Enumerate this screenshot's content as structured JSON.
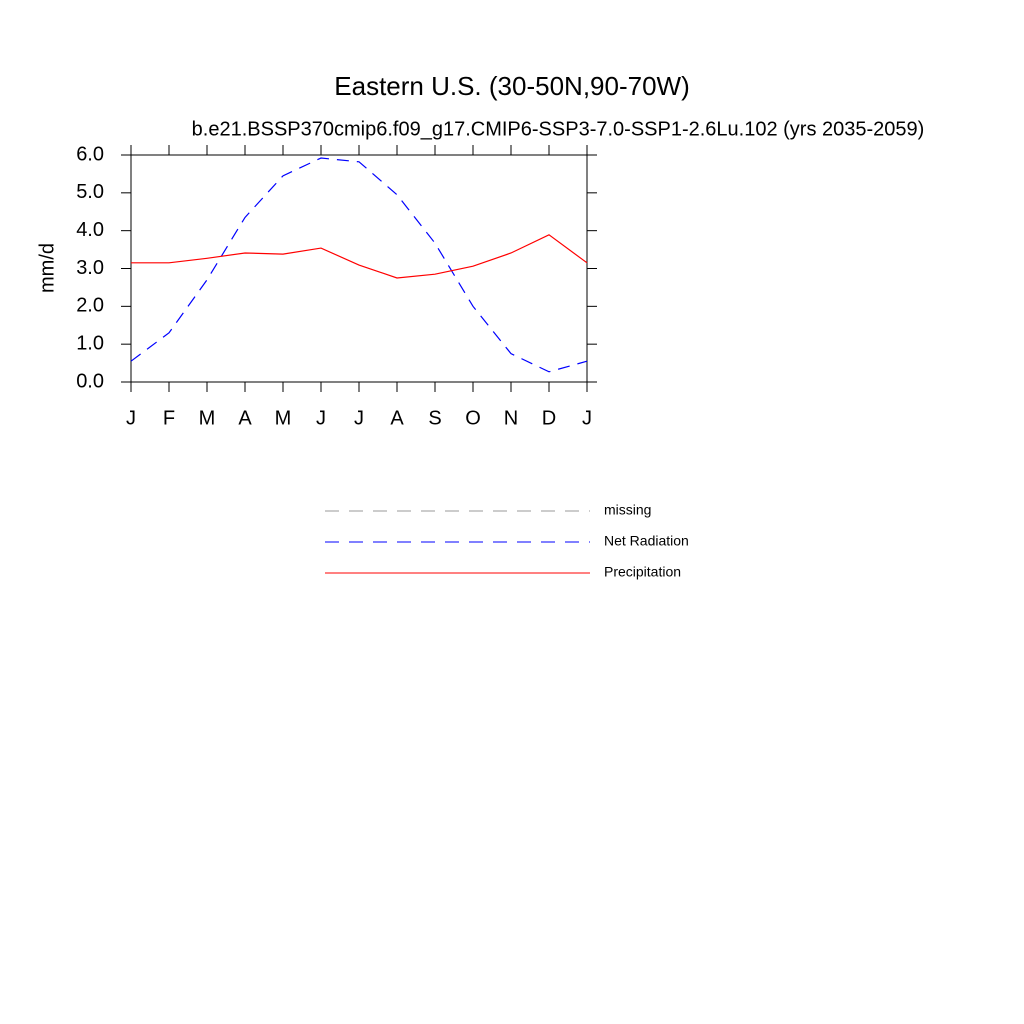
{
  "chart_data": {
    "type": "line",
    "title": "Eastern U.S. (30-50N,90-70W)",
    "subtitle": "b.e21.BSSP370cmip6.f09_g17.CMIP6-SSP3-7.0-SSP1-2.6Lu.102 (yrs 2035-2059)",
    "y_label": "mm/d",
    "categories": [
      "J",
      "F",
      "M",
      "A",
      "M",
      "J",
      "J",
      "A",
      "S",
      "O",
      "N",
      "D",
      "J"
    ],
    "ylim": [
      0,
      6
    ],
    "yticks": [
      {
        "value": 0,
        "label": "0.0"
      },
      {
        "value": 1,
        "label": "1.0"
      },
      {
        "value": 2,
        "label": "2.0"
      },
      {
        "value": 3,
        "label": "3.0"
      },
      {
        "value": 4,
        "label": "4.0"
      },
      {
        "value": 5,
        "label": "5.0"
      },
      {
        "value": 6,
        "label": "6.0"
      }
    ],
    "series": [
      {
        "name": "missing",
        "color": "#999999",
        "dashed": true,
        "values": [
          null,
          null,
          null,
          null,
          null,
          null,
          null,
          null,
          null,
          null,
          null,
          null,
          null
        ]
      },
      {
        "name": "Net Radiation",
        "color": "#0000ff",
        "dashed": true,
        "values": [
          0.55,
          1.3,
          2.7,
          4.35,
          5.45,
          5.92,
          5.82,
          4.95,
          3.67,
          2.0,
          0.75,
          0.27,
          0.55
        ]
      },
      {
        "name": "Precipitation",
        "color": "#ff0000",
        "dashed": false,
        "values": [
          3.15,
          3.15,
          3.27,
          3.41,
          3.38,
          3.54,
          3.09,
          2.75,
          2.85,
          3.06,
          3.41,
          3.89,
          3.15
        ]
      }
    ]
  }
}
